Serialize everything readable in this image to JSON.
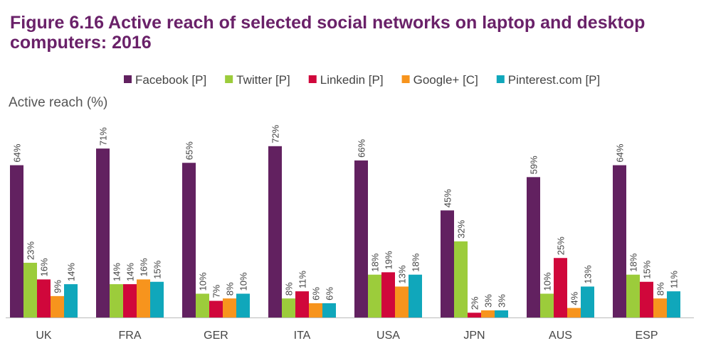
{
  "figure_title": "Figure 6.16    Active reach of selected social networks on laptop and desktop computers: 2016",
  "colors": {
    "title": "#6a2169",
    "axis": "#bbbbbb",
    "text": "#444444"
  },
  "chart_data": {
    "type": "bar",
    "title": "Figure 6.16    Active reach of selected social networks on laptop and desktop computers: 2016",
    "ylabel": "Active reach (%)",
    "xlabel": "",
    "ylim": [
      0,
      100
    ],
    "grid": false,
    "legend_position": "top",
    "categories": [
      "UK",
      "FRA",
      "GER",
      "ITA",
      "USA",
      "JPN",
      "AUS",
      "ESP"
    ],
    "series": [
      {
        "name": "Facebook [P]",
        "color": "#622160",
        "values": [
          64,
          71,
          65,
          72,
          66,
          45,
          59,
          64
        ]
      },
      {
        "name": "Twitter [P]",
        "color": "#9ccc3b",
        "values": [
          23,
          14,
          10,
          8,
          18,
          32,
          10,
          18
        ]
      },
      {
        "name": "Linkedin [P]",
        "color": "#d0073b",
        "values": [
          16,
          14,
          7,
          11,
          19,
          2,
          25,
          15
        ]
      },
      {
        "name": "Google+ [C]",
        "color": "#f7941d",
        "values": [
          9,
          16,
          8,
          6,
          13,
          3,
          4,
          8
        ]
      },
      {
        "name": "Pinterest.com [P]",
        "color": "#10a7bb",
        "values": [
          14,
          15,
          10,
          6,
          18,
          3,
          13,
          11
        ]
      }
    ]
  }
}
